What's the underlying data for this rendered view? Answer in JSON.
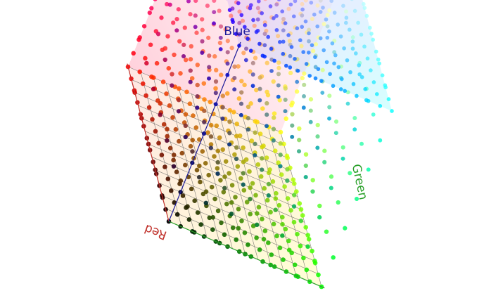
{
  "axes": {
    "blue": {
      "label": "Blue",
      "color": "#1a1a9a"
    },
    "green": {
      "label": "Green",
      "color": "#2aa02a"
    },
    "red": {
      "label": "Red",
      "color": "#c0302a"
    }
  },
  "cube": {
    "divisions": 12,
    "face_tint_opacity": 0.22
  }
}
